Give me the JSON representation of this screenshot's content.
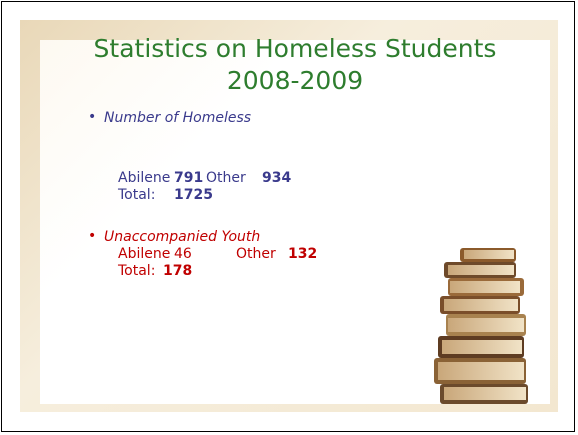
{
  "slide": {
    "title": [
      "Statistics on Homeless Students",
      "2008-2009"
    ],
    "bullets": [
      {
        "heading": "Number of Homeless",
        "row1": {
          "label_a": "Abilene",
          "value_a": "791",
          "label_b": "Other",
          "value_b": "934"
        },
        "row2": {
          "label": "Total:",
          "value": "1725"
        }
      },
      {
        "heading": "Unaccompanied Youth",
        "row1": {
          "label_a": "Abilene",
          "value_a": "46",
          "label_b": "Other",
          "value_b": "132"
        },
        "row2": {
          "label": "Total:",
          "value": "178"
        }
      }
    ]
  }
}
